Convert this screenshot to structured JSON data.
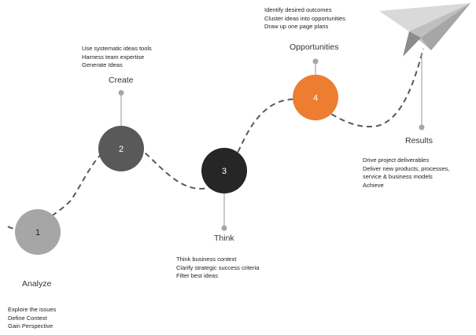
{
  "steps": [
    {
      "number": "1",
      "title": "Analyze",
      "color": "#a6a6a6",
      "notes": [
        "Explore  the issues",
        "Define Context",
        "Gain Perspective"
      ]
    },
    {
      "number": "2",
      "title": "Create",
      "color": "#595959",
      "notes": [
        "Use systematic  ideas tools",
        "Harness team  expertise",
        "Generate  Ideas"
      ]
    },
    {
      "number": "3",
      "title": "Think",
      "color": "#262626",
      "notes": [
        "Think business context",
        "Clarify strategic  success criteria",
        "Filter  best ideas"
      ]
    },
    {
      "number": "4",
      "title": "Opportunities",
      "color": "#ed7d31",
      "notes": [
        "Identify desired outcomes",
        "Cluster ideas into opportunities",
        "Draw up one page plans"
      ]
    }
  ],
  "results": {
    "title": "Results",
    "notes": [
      "Drive project deliverables",
      "Deliver  new products, processes,",
      "service  &  business models",
      "Achieve"
    ]
  },
  "colors": {
    "path": "#595959",
    "connector": "#a6a6a6",
    "plane_light": "#d9d9d9",
    "plane_mid": "#bfbfbf",
    "plane_dark": "#8c8c8c"
  },
  "icons": {
    "end": "paper-plane-icon"
  }
}
